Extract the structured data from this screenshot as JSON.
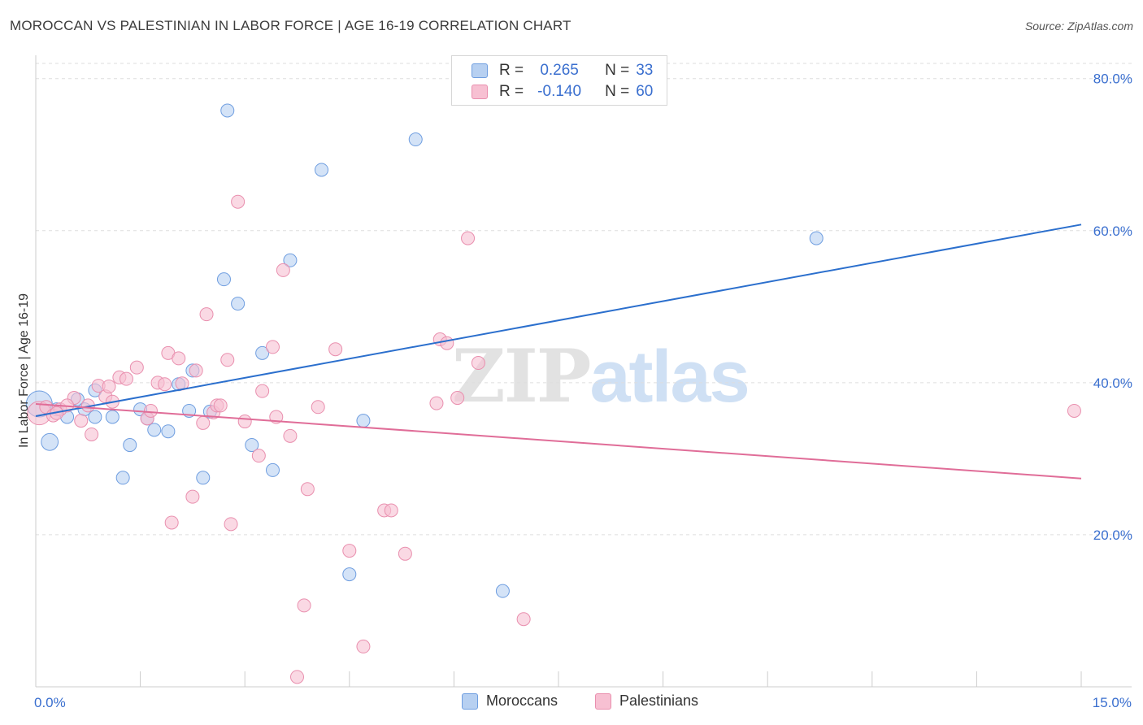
{
  "header": {
    "title": "MOROCCAN VS PALESTINIAN IN LABOR FORCE | AGE 16-19 CORRELATION CHART",
    "source_prefix": "Source: ",
    "source_name": "ZipAtlas.com"
  },
  "watermark": {
    "zip": "ZIP",
    "atlas": "atlas"
  },
  "legend": {
    "rows": [
      {
        "r_label": "R =",
        "r_value": "0.265",
        "n_label": "N =",
        "n_value": "33"
      },
      {
        "r_label": "R =",
        "r_value": "-0.140",
        "n_label": "N =",
        "n_value": "60"
      }
    ]
  },
  "bottom_legend": {
    "items": [
      "Moroccans",
      "Palestinians"
    ]
  },
  "colors": {
    "blue_fill": "#b7d0f1",
    "blue_stroke": "#6f9ee0",
    "blue_line": "#2b6fcd",
    "pink_fill": "#f7c0d2",
    "pink_stroke": "#e98fae",
    "pink_line": "#e06d98",
    "grid": "#dddddd",
    "tick_text": "#3a6fcf"
  },
  "chart_data": {
    "type": "scatter",
    "title": "MOROCCAN VS PALESTINIAN IN LABOR FORCE | AGE 16-19 CORRELATION CHART",
    "xlabel": "",
    "ylabel": "In Labor Force | Age 16-19",
    "xlim": [
      0,
      15
    ],
    "ylim": [
      0,
      82
    ],
    "x_tick_labels": [
      {
        "value": 0,
        "label": "0.0%"
      },
      {
        "value": 15,
        "label": "15.0%"
      }
    ],
    "y_tick_labels": [
      {
        "value": 20,
        "label": "20.0%"
      },
      {
        "value": 40,
        "label": "40.0%"
      },
      {
        "value": 60,
        "label": "60.0%"
      },
      {
        "value": 80,
        "label": "80.0%"
      }
    ],
    "x_minor_ticks": [
      1.5,
      3,
      4.5,
      6,
      7.5,
      9,
      10.5,
      12,
      13.5,
      15
    ],
    "grid": true,
    "legend_position": "top-center",
    "series": [
      {
        "name": "Moroccans",
        "color": "#6f9ee0",
        "trend": {
          "x": [
            0,
            15
          ],
          "y": [
            35.6,
            60.8
          ]
        },
        "points": [
          {
            "x": 0.05,
            "y": 37.2,
            "s": 2
          },
          {
            "x": 0.2,
            "y": 32.2,
            "s": 1.3
          },
          {
            "x": 0.3,
            "y": 36.5,
            "s": 1
          },
          {
            "x": 0.45,
            "y": 35.5,
            "s": 1
          },
          {
            "x": 0.6,
            "y": 37.8,
            "s": 1
          },
          {
            "x": 0.85,
            "y": 39.0,
            "s": 1
          },
          {
            "x": 0.85,
            "y": 35.5,
            "s": 1
          },
          {
            "x": 1.1,
            "y": 35.5,
            "s": 1
          },
          {
            "x": 1.25,
            "y": 27.5,
            "s": 1
          },
          {
            "x": 1.35,
            "y": 31.8,
            "s": 1
          },
          {
            "x": 1.5,
            "y": 36.5,
            "s": 1
          },
          {
            "x": 1.6,
            "y": 35.3,
            "s": 1
          },
          {
            "x": 1.7,
            "y": 33.8,
            "s": 1
          },
          {
            "x": 1.9,
            "y": 33.6,
            "s": 1
          },
          {
            "x": 2.05,
            "y": 39.8,
            "s": 1
          },
          {
            "x": 2.2,
            "y": 36.3,
            "s": 1
          },
          {
            "x": 2.25,
            "y": 41.6,
            "s": 1
          },
          {
            "x": 2.4,
            "y": 27.5,
            "s": 1
          },
          {
            "x": 2.5,
            "y": 36.2,
            "s": 1
          },
          {
            "x": 2.7,
            "y": 53.6,
            "s": 1
          },
          {
            "x": 2.75,
            "y": 75.8,
            "s": 1
          },
          {
            "x": 2.9,
            "y": 50.4,
            "s": 1
          },
          {
            "x": 3.1,
            "y": 31.8,
            "s": 1
          },
          {
            "x": 3.25,
            "y": 43.9,
            "s": 1
          },
          {
            "x": 3.4,
            "y": 28.5,
            "s": 1
          },
          {
            "x": 3.65,
            "y": 56.1,
            "s": 1
          },
          {
            "x": 4.1,
            "y": 68.0,
            "s": 1
          },
          {
            "x": 4.5,
            "y": 14.8,
            "s": 1
          },
          {
            "x": 4.7,
            "y": 35.0,
            "s": 1
          },
          {
            "x": 5.45,
            "y": 72.0,
            "s": 1
          },
          {
            "x": 6.7,
            "y": 12.6,
            "s": 1
          },
          {
            "x": 11.2,
            "y": 59.0,
            "s": 1
          },
          {
            "x": 0.7,
            "y": 36.5,
            "s": 1
          }
        ]
      },
      {
        "name": "Palestinians",
        "color": "#e98fae",
        "trend": {
          "x": [
            0,
            15
          ],
          "y": [
            37.2,
            27.4
          ]
        },
        "points": [
          {
            "x": 0.05,
            "y": 36.0,
            "s": 1.8
          },
          {
            "x": 0.15,
            "y": 36.8,
            "s": 1
          },
          {
            "x": 0.25,
            "y": 35.7,
            "s": 1
          },
          {
            "x": 0.35,
            "y": 36.5,
            "s": 1
          },
          {
            "x": 0.55,
            "y": 38.0,
            "s": 1
          },
          {
            "x": 0.65,
            "y": 35.0,
            "s": 1
          },
          {
            "x": 0.75,
            "y": 37.0,
            "s": 1
          },
          {
            "x": 0.8,
            "y": 33.2,
            "s": 1
          },
          {
            "x": 0.9,
            "y": 39.6,
            "s": 1
          },
          {
            "x": 1.0,
            "y": 38.2,
            "s": 1
          },
          {
            "x": 1.1,
            "y": 37.5,
            "s": 1
          },
          {
            "x": 1.2,
            "y": 40.7,
            "s": 1
          },
          {
            "x": 1.3,
            "y": 40.5,
            "s": 1
          },
          {
            "x": 1.45,
            "y": 42.0,
            "s": 1
          },
          {
            "x": 1.6,
            "y": 35.3,
            "s": 1
          },
          {
            "x": 1.65,
            "y": 36.3,
            "s": 1
          },
          {
            "x": 1.75,
            "y": 40.0,
            "s": 1
          },
          {
            "x": 1.85,
            "y": 39.8,
            "s": 1
          },
          {
            "x": 1.9,
            "y": 43.9,
            "s": 1
          },
          {
            "x": 1.95,
            "y": 21.6,
            "s": 1
          },
          {
            "x": 2.05,
            "y": 43.2,
            "s": 1
          },
          {
            "x": 2.1,
            "y": 39.9,
            "s": 1
          },
          {
            "x": 2.25,
            "y": 25.0,
            "s": 1
          },
          {
            "x": 2.3,
            "y": 41.6,
            "s": 1
          },
          {
            "x": 2.4,
            "y": 34.7,
            "s": 1
          },
          {
            "x": 2.45,
            "y": 49.0,
            "s": 1
          },
          {
            "x": 2.55,
            "y": 36.1,
            "s": 1
          },
          {
            "x": 2.6,
            "y": 37.0,
            "s": 1
          },
          {
            "x": 2.65,
            "y": 37.0,
            "s": 1
          },
          {
            "x": 2.75,
            "y": 43.0,
            "s": 1
          },
          {
            "x": 2.8,
            "y": 21.4,
            "s": 1
          },
          {
            "x": 2.9,
            "y": 63.8,
            "s": 1
          },
          {
            "x": 3.0,
            "y": 34.9,
            "s": 1
          },
          {
            "x": 3.2,
            "y": 30.4,
            "s": 1
          },
          {
            "x": 3.25,
            "y": 38.9,
            "s": 1
          },
          {
            "x": 3.4,
            "y": 44.7,
            "s": 1
          },
          {
            "x": 3.45,
            "y": 35.5,
            "s": 1
          },
          {
            "x": 3.55,
            "y": 54.8,
            "s": 1
          },
          {
            "x": 3.65,
            "y": 33.0,
            "s": 1
          },
          {
            "x": 3.75,
            "y": 1.3,
            "s": 1
          },
          {
            "x": 3.85,
            "y": 10.7,
            "s": 1
          },
          {
            "x": 3.9,
            "y": 26.0,
            "s": 1
          },
          {
            "x": 4.05,
            "y": 36.8,
            "s": 1
          },
          {
            "x": 4.3,
            "y": 44.4,
            "s": 1
          },
          {
            "x": 4.5,
            "y": 17.9,
            "s": 1
          },
          {
            "x": 4.7,
            "y": 5.3,
            "s": 1
          },
          {
            "x": 5.0,
            "y": 23.2,
            "s": 1
          },
          {
            "x": 5.1,
            "y": 23.2,
            "s": 1
          },
          {
            "x": 5.3,
            "y": 17.5,
            "s": 1
          },
          {
            "x": 5.75,
            "y": 37.3,
            "s": 1
          },
          {
            "x": 5.8,
            "y": 45.7,
            "s": 1
          },
          {
            "x": 5.9,
            "y": 45.2,
            "s": 1
          },
          {
            "x": 6.05,
            "y": 38.0,
            "s": 1
          },
          {
            "x": 6.2,
            "y": 59.0,
            "s": 1
          },
          {
            "x": 6.35,
            "y": 42.6,
            "s": 1
          },
          {
            "x": 7.0,
            "y": 8.9,
            "s": 1
          },
          {
            "x": 14.9,
            "y": 36.3,
            "s": 1
          },
          {
            "x": 0.45,
            "y": 37.0,
            "s": 1
          },
          {
            "x": 1.05,
            "y": 39.5,
            "s": 1
          },
          {
            "x": 0.3,
            "y": 36.0,
            "s": 1
          }
        ]
      }
    ]
  }
}
